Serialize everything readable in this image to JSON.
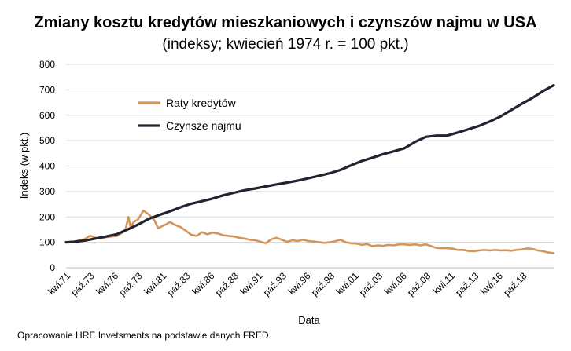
{
  "chart_data": {
    "type": "line",
    "title": "Zmiany kosztu kredytów mieszkaniowych i czynszów najmu w USA",
    "subtitle": "(indeksy; kwiecień 1974 r. = 100 pkt.)",
    "xlabel": "Data",
    "ylabel": "Indeks (w pkt.)",
    "ylim": [
      0,
      800
    ],
    "yticks": [
      "0",
      "100",
      "200",
      "300",
      "400",
      "500",
      "600",
      "700",
      "800"
    ],
    "xticks": [
      "kwi.71",
      "paź.73",
      "kwi.76",
      "paź.78",
      "kwi.81",
      "paź.83",
      "kwi.86",
      "paź.88",
      "kwi.91",
      "paź.93",
      "kwi.96",
      "paź.98",
      "kwi.01",
      "paź.03",
      "kwi.06",
      "paź.08",
      "kwi.11",
      "paź.13",
      "kwi.16",
      "paź.18"
    ],
    "xlim": [
      1974.25,
      2020.0
    ],
    "grid": true,
    "legend_position": "top-left",
    "series": [
      {
        "name": "Raty kredytów",
        "color": "#d4955a",
        "x": [
          1974.25,
          1975.0,
          1976.0,
          1976.5,
          1977.0,
          1977.5,
          1978.0,
          1979.0,
          1979.8,
          1980.1,
          1980.3,
          1980.6,
          1981.0,
          1981.5,
          1982.0,
          1982.5,
          1982.9,
          1983.3,
          1983.6,
          1984.0,
          1984.5,
          1985.0,
          1985.5,
          1986.0,
          1986.5,
          1987.0,
          1987.5,
          1988.0,
          1988.5,
          1989.0,
          1989.5,
          1990.0,
          1990.5,
          1991.0,
          1991.5,
          1992.0,
          1992.5,
          1993.0,
          1993.5,
          1994.0,
          1994.5,
          1995.0,
          1995.5,
          1996.0,
          1996.5,
          1997.0,
          1997.5,
          1998.0,
          1998.5,
          1999.0,
          1999.5,
          2000.0,
          2000.5,
          2001.0,
          2001.5,
          2002.0,
          2002.5,
          2003.0,
          2003.5,
          2004.0,
          2004.5,
          2005.0,
          2005.5,
          2006.0,
          2006.5,
          2007.0,
          2007.5,
          2008.0,
          2008.5,
          2009.0,
          2009.5,
          2010.0,
          2010.5,
          2011.0,
          2011.5,
          2012.0,
          2012.5,
          2013.0,
          2013.5,
          2014.0,
          2014.5,
          2015.0,
          2015.5,
          2016.0,
          2016.5,
          2017.0,
          2017.5,
          2018.0,
          2018.5,
          2019.0,
          2019.5,
          2020.0
        ],
        "y": [
          100,
          103,
          112,
          126,
          118,
          115,
          120,
          125,
          145,
          200,
          160,
          180,
          190,
          225,
          210,
          190,
          155,
          165,
          170,
          180,
          168,
          160,
          145,
          130,
          125,
          140,
          132,
          138,
          135,
          128,
          125,
          123,
          118,
          115,
          110,
          108,
          102,
          96,
          112,
          118,
          110,
          102,
          108,
          105,
          110,
          105,
          103,
          100,
          98,
          100,
          104,
          110,
          100,
          96,
          95,
          90,
          93,
          85,
          88,
          86,
          90,
          88,
          92,
          92,
          90,
          92,
          88,
          92,
          85,
          78,
          77,
          77,
          75,
          70,
          70,
          66,
          65,
          68,
          70,
          68,
          70,
          68,
          69,
          67,
          70,
          72,
          76,
          74,
          68,
          65,
          60,
          57
        ]
      },
      {
        "name": "Czynsze najmu",
        "color": "#1f2430",
        "x": [
          1974.25,
          1975.0,
          1976.0,
          1977.0,
          1978.0,
          1979.0,
          1980.0,
          1981.0,
          1982.0,
          1983.0,
          1984.0,
          1985.0,
          1986.0,
          1987.0,
          1988.0,
          1989.0,
          1990.0,
          1991.0,
          1992.0,
          1993.0,
          1994.0,
          1995.0,
          1996.0,
          1997.0,
          1998.0,
          1999.0,
          2000.0,
          2001.0,
          2002.0,
          2003.0,
          2004.0,
          2005.0,
          2006.0,
          2007.0,
          2008.0,
          2009.0,
          2010.0,
          2011.0,
          2012.0,
          2013.0,
          2014.0,
          2015.0,
          2016.0,
          2017.0,
          2018.0,
          2019.0,
          2020.0
        ],
        "y": [
          100,
          102,
          107,
          115,
          123,
          132,
          150,
          170,
          192,
          208,
          222,
          238,
          252,
          262,
          272,
          285,
          295,
          305,
          312,
          320,
          328,
          335,
          343,
          352,
          362,
          372,
          385,
          403,
          420,
          433,
          447,
          458,
          470,
          495,
          515,
          520,
          520,
          532,
          545,
          558,
          575,
          595,
          620,
          645,
          668,
          695,
          718
        ]
      }
    ]
  },
  "footer": "Opracowanie HRE Invetsments na podstawie danych FRED"
}
